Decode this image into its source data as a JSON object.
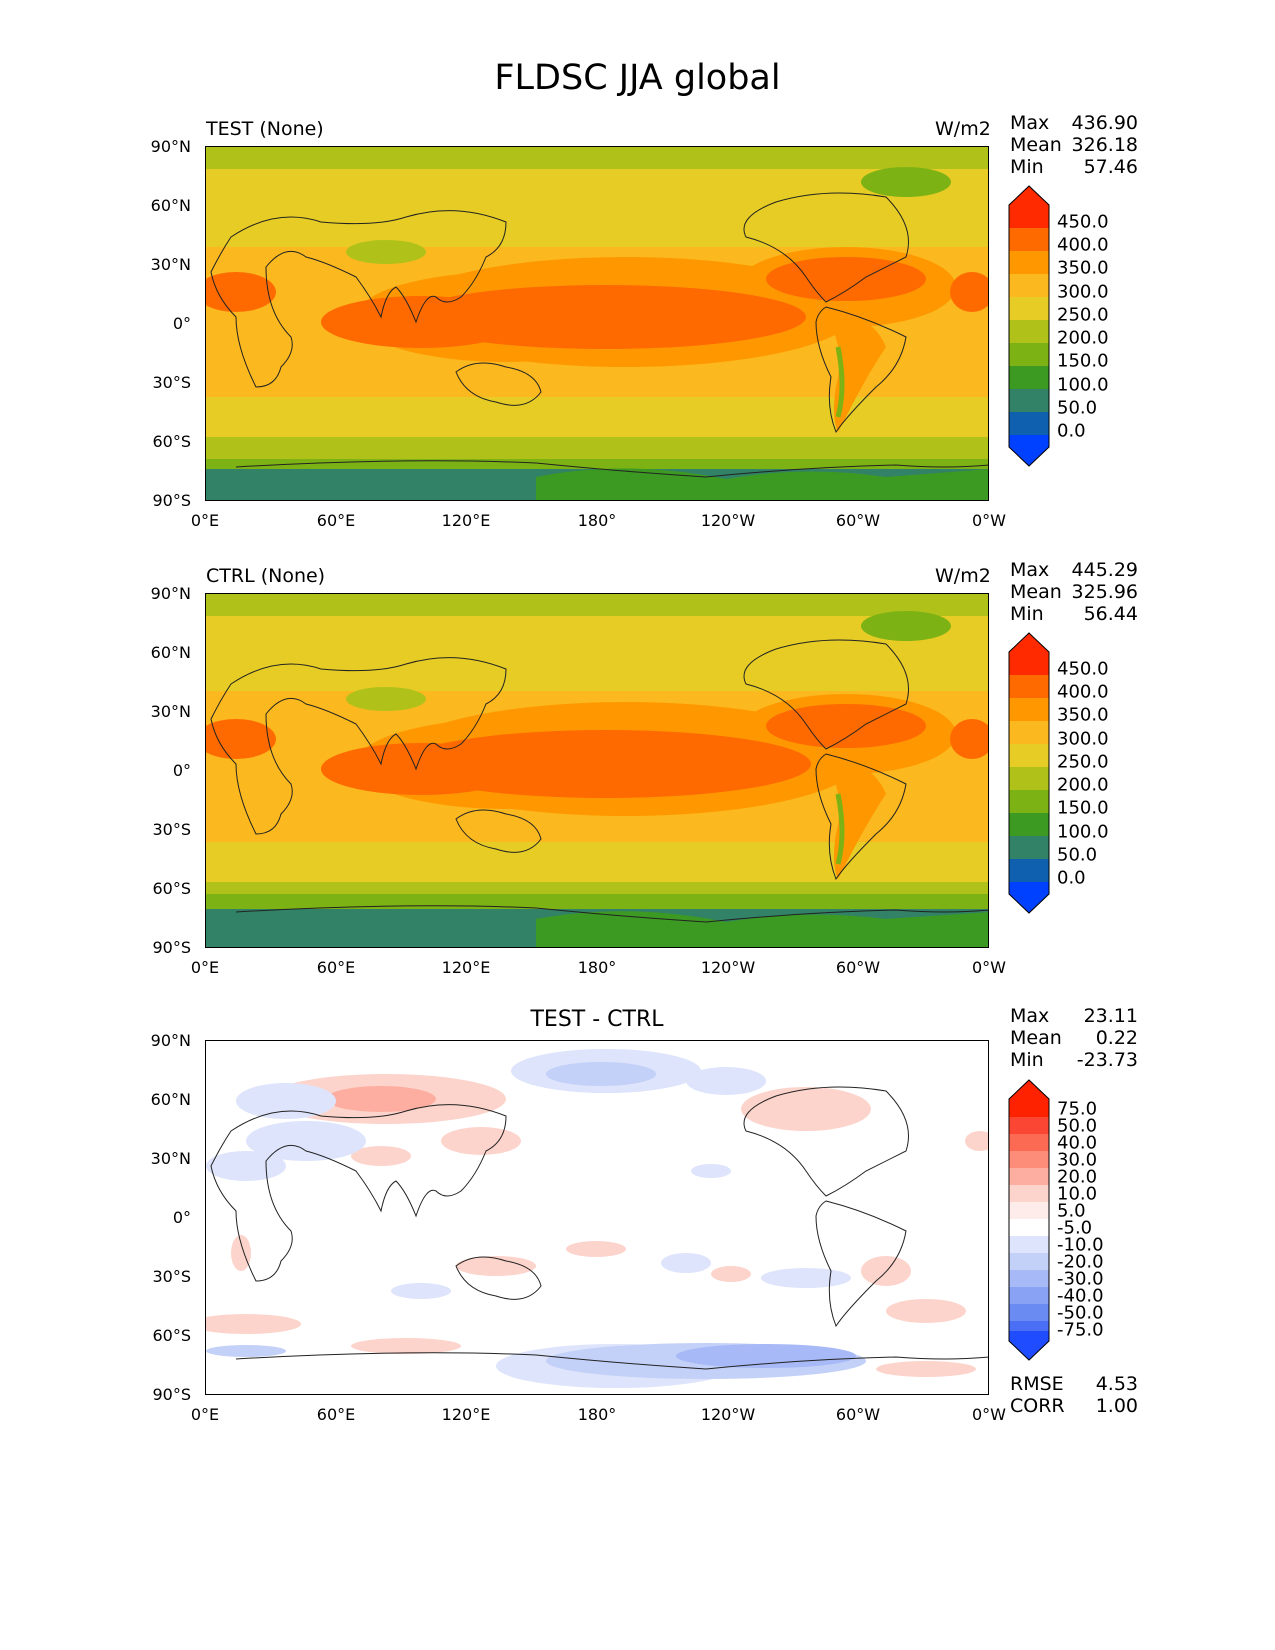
{
  "title": "FLDSC JJA global",
  "x_ticks": [
    "0°E",
    "60°E",
    "120°E",
    "180°",
    "120°W",
    "60°W",
    "0°W"
  ],
  "y_ticks": [
    "90°N",
    "60°N",
    "30°N",
    "0°",
    "30°S",
    "60°S",
    "90°S"
  ],
  "panels": [
    {
      "label": "TEST (None)",
      "units": "W/m2",
      "stats": {
        "max_label": "Max",
        "max": "436.90",
        "mean_label": "Mean",
        "mean": "326.18",
        "min_label": "Min",
        "min": "57.46"
      },
      "colorbar_labels": [
        "450.0",
        "400.0",
        "350.0",
        "300.0",
        "250.0",
        "200.0",
        "150.0",
        "100.0",
        "50.0",
        "0.0"
      ]
    },
    {
      "label": "CTRL (None)",
      "units": "W/m2",
      "stats": {
        "max_label": "Max",
        "max": "445.29",
        "mean_label": "Mean",
        "mean": "325.96",
        "min_label": "Min",
        "min": "56.44"
      },
      "colorbar_labels": [
        "450.0",
        "400.0",
        "350.0",
        "300.0",
        "250.0",
        "200.0",
        "150.0",
        "100.0",
        "50.0",
        "0.0"
      ]
    },
    {
      "title": "TEST - CTRL",
      "stats": {
        "max_label": "Max",
        "max": "23.11",
        "mean_label": "Mean",
        "mean": "0.22",
        "min_label": "Min",
        "min": "-23.73"
      },
      "colorbar_labels": [
        "75.0",
        "50.0",
        "40.0",
        "30.0",
        "20.0",
        "10.0",
        "5.0",
        "-5.0",
        "-10.0",
        "-20.0",
        "-30.0",
        "-40.0",
        "-50.0",
        "-75.0"
      ],
      "rmse_label": "RMSE",
      "rmse": "4.53",
      "corr_label": "CORR",
      "corr": "1.00"
    }
  ],
  "colors": {
    "field_levels": [
      "#ff2a00",
      "#ff6a00",
      "#ff9800",
      "#fbb81f",
      "#e6cc24",
      "#b0c21a",
      "#7db214",
      "#3c9a22",
      "#318266",
      "#1060b0",
      "#0040ff"
    ],
    "diff_levels": [
      "#ff2200",
      "#fb4634",
      "#fc6a54",
      "#fd8d78",
      "#fdaea0",
      "#fdd4cc",
      "#fdecea",
      "#ffffff",
      "#dde4fb",
      "#c3d0f8",
      "#a7b9f6",
      "#8aa2f3",
      "#6a8bf2",
      "#4a6ff5",
      "#1f4cff"
    ]
  }
}
